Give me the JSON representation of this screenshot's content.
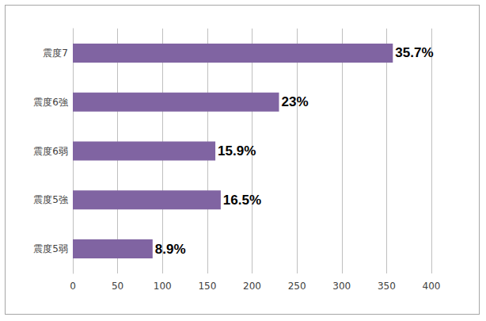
{
  "chart_data": {
    "type": "bar",
    "orientation": "horizontal",
    "categories": [
      "震度7",
      "震度6強",
      "震度6弱",
      "震度5強",
      "震度5弱"
    ],
    "values": [
      357,
      230,
      159,
      165,
      89
    ],
    "value_labels": [
      "35.7%",
      "23%",
      "15.9%",
      "16.5%",
      "8.9%"
    ],
    "color": "#8064a2",
    "xlim": [
      0,
      400
    ],
    "xticks": [
      0,
      50,
      100,
      150,
      200,
      250,
      300,
      350,
      400
    ],
    "grid": true,
    "data_labels": true
  }
}
